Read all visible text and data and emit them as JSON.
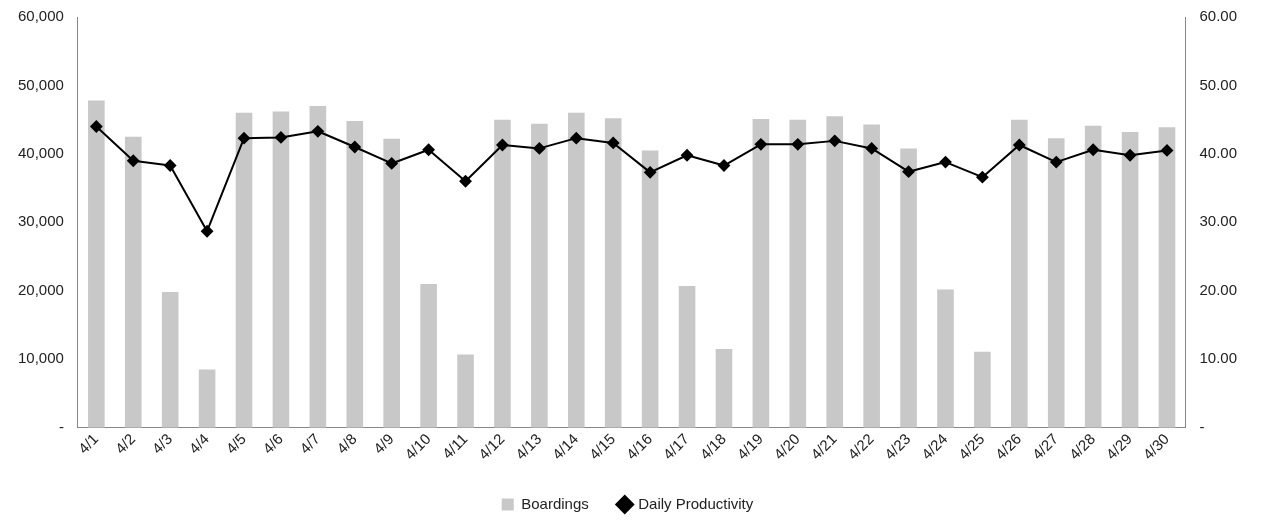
{
  "chart_data": {
    "type": "bar",
    "categories": [
      "4/1",
      "4/2",
      "4/3",
      "4/4",
      "4/5",
      "4/6",
      "4/7",
      "4/8",
      "4/9",
      "4/10",
      "4/11",
      "4/12",
      "4/13",
      "4/14",
      "4/15",
      "4/16",
      "4/17",
      "4/18",
      "4/19",
      "4/20",
      "4/21",
      "4/22",
      "4/23",
      "4/24",
      "4/25",
      "4/26",
      "4/27",
      "4/28",
      "4/29",
      "4/30"
    ],
    "series": [
      {
        "name": "Boardings",
        "type": "bar",
        "color": "#c8c8c8",
        "values": [
          47800,
          42500,
          19800,
          8500,
          46000,
          46200,
          47000,
          44800,
          42200,
          21000,
          10700,
          45000,
          44400,
          46000,
          45200,
          40500,
          20700,
          11500,
          45100,
          45000,
          45500,
          44300,
          40800,
          20200,
          11100,
          45000,
          42300,
          44100,
          43200,
          43900
        ]
      },
      {
        "name": "Daily Productivity",
        "type": "line",
        "axis": "y2",
        "color": "#000000",
        "marker": "diamond",
        "values": [
          44.0,
          39.0,
          38.3,
          28.7,
          42.3,
          42.4,
          43.3,
          41.0,
          38.6,
          40.6,
          36.0,
          41.3,
          40.8,
          42.3,
          41.6,
          37.3,
          39.8,
          38.3,
          41.4,
          41.4,
          41.9,
          40.8,
          37.4,
          38.8,
          36.6,
          41.3,
          38.8,
          40.6,
          39.8,
          40.5
        ]
      }
    ],
    "ylim": [
      0,
      60000
    ],
    "yticks": [
      {
        "value": 0,
        "label": "-"
      },
      {
        "value": 10000,
        "label": "10,000"
      },
      {
        "value": 20000,
        "label": "20,000"
      },
      {
        "value": 30000,
        "label": "30,000"
      },
      {
        "value": 40000,
        "label": "40,000"
      },
      {
        "value": 50000,
        "label": "50,000"
      },
      {
        "value": 60000,
        "label": "60,000"
      }
    ],
    "y2lim": [
      0,
      60
    ],
    "y2ticks": [
      {
        "value": 0,
        "label": "-"
      },
      {
        "value": 10,
        "label": "10.00"
      },
      {
        "value": 20,
        "label": "20.00"
      },
      {
        "value": 30,
        "label": "30.00"
      },
      {
        "value": 40,
        "label": "40.00"
      },
      {
        "value": 50,
        "label": "50.00"
      },
      {
        "value": 60,
        "label": "60.00"
      }
    ],
    "grid": false,
    "legend": "bottom"
  }
}
